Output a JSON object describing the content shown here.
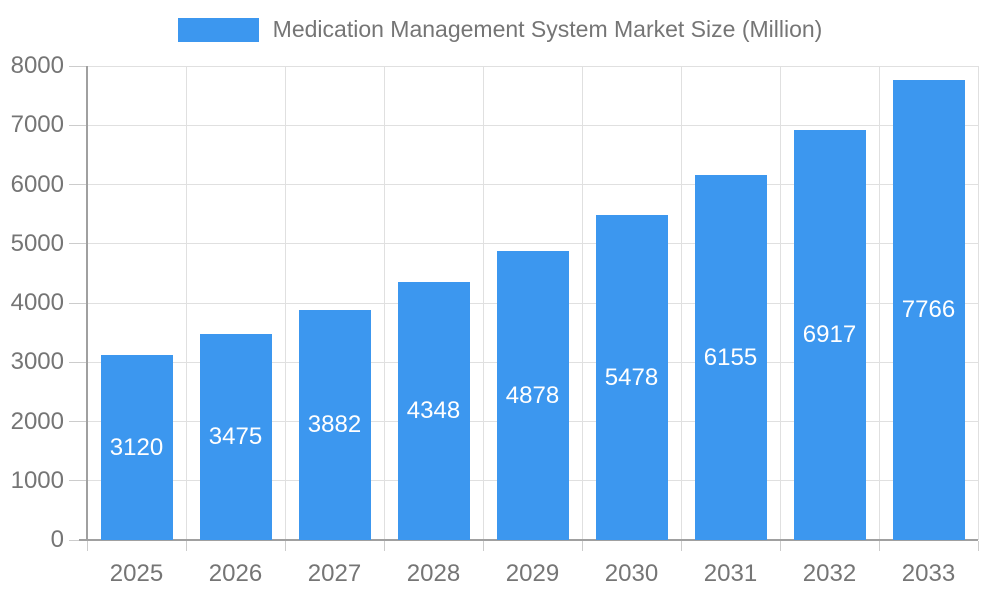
{
  "title": "Medication Management System Market Size (Million)",
  "legend": {
    "position": "top",
    "items": [
      {
        "label": "Medication Management System Market Size (Million)",
        "color": "#3c97ef"
      }
    ]
  },
  "colors": {
    "bar": "#3c97ef",
    "bar_label": "#ffffff",
    "axis_text": "#757575",
    "grid_line": "#e0e0e0",
    "axis_line": "#a0a0a0",
    "tick_line": "#cccccc",
    "background": "#ffffff"
  },
  "chart_data": {
    "type": "bar",
    "title": "Medication Management System Market Size (Million)",
    "series_name": "Medication Management System Market Size (Million)",
    "categories": [
      "2025",
      "2026",
      "2027",
      "2028",
      "2029",
      "2030",
      "2031",
      "2032",
      "2033"
    ],
    "values": [
      3120,
      3475,
      3882,
      4348,
      4878,
      5478,
      6155,
      6917,
      7766
    ],
    "data_labels": [
      "3120",
      "3475",
      "3882",
      "4348",
      "4878",
      "5478",
      "6155",
      "6917",
      "7766"
    ],
    "xlabel": "",
    "ylabel": "",
    "ylim": [
      0,
      8000
    ],
    "yticks": [
      0,
      1000,
      2000,
      3000,
      4000,
      5000,
      6000,
      7000,
      8000
    ],
    "grid": true,
    "legend_position": "top",
    "bar_label_position": "center"
  }
}
